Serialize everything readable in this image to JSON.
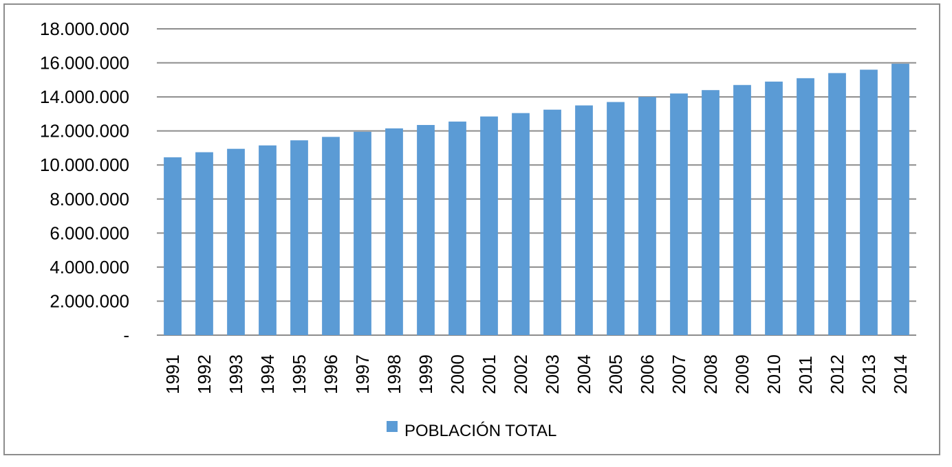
{
  "chart_data": {
    "type": "bar",
    "title": "",
    "xlabel": "",
    "ylabel": "",
    "categories": [
      "1991",
      "1992",
      "1993",
      "1994",
      "1995",
      "1996",
      "1997",
      "1998",
      "1999",
      "2000",
      "2001",
      "2002",
      "2003",
      "2004",
      "2005",
      "2006",
      "2007",
      "2008",
      "2009",
      "2010",
      "2011",
      "2012",
      "2013",
      "2014"
    ],
    "series": [
      {
        "name": "POBLACIÓN TOTAL",
        "color": "#5b9bd5",
        "values": [
          10450000,
          10750000,
          10950000,
          11150000,
          11450000,
          11650000,
          11950000,
          12150000,
          12350000,
          12550000,
          12850000,
          13050000,
          13250000,
          13500000,
          13700000,
          14000000,
          14200000,
          14400000,
          14700000,
          14900000,
          15100000,
          15400000,
          15600000,
          15950000
        ]
      }
    ],
    "ylim": [
      0,
      18000000
    ],
    "yticks": [
      0,
      2000000,
      4000000,
      6000000,
      8000000,
      10000000,
      12000000,
      14000000,
      16000000,
      18000000
    ],
    "ytick_labels": [
      "-",
      "2.000.000",
      "4.000.000",
      "6.000.000",
      "8.000.000",
      "10.000.000",
      "12.000.000",
      "14.000.000",
      "16.000.000",
      "18.000.000"
    ],
    "grid": true,
    "legend_position": "bottom"
  }
}
